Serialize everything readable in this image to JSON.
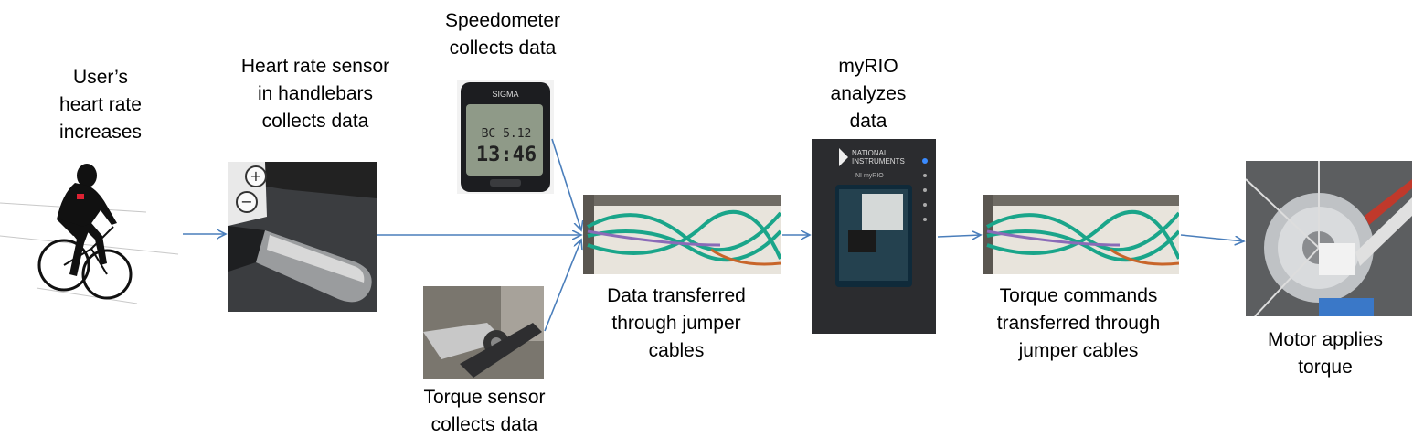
{
  "steps": {
    "user": "User’s\nheart rate\nincreases",
    "heart_sensor": "Heart rate sensor\nin handlebars\ncollects data",
    "speedometer": "Speedometer\ncollects data",
    "torque_sensor": "Torque sensor\ncollects data",
    "data_transfer": "Data transferred\nthrough jumper\ncables",
    "myrio": "myRIO\nanalyzes\ndata",
    "torque_commands": "Torque commands\ntransferred through\njumper cables",
    "motor": "Motor applies\ntorque"
  },
  "photo_text": {
    "speedometer_brand": "SIGMA",
    "speedometer_model": "BC 5.12",
    "speedometer_reading_top": "BC 5.12",
    "speedometer_reading": "13:46",
    "myrio_brand": "NATIONAL\nINSTRUMENTS",
    "myrio_model": "NI myRIO"
  },
  "colors": {
    "arrow": "#4a7ebb",
    "cable_green": "#1aa58a",
    "cable_purple": "#8a6bb8",
    "cable_orange": "#c8652a"
  }
}
